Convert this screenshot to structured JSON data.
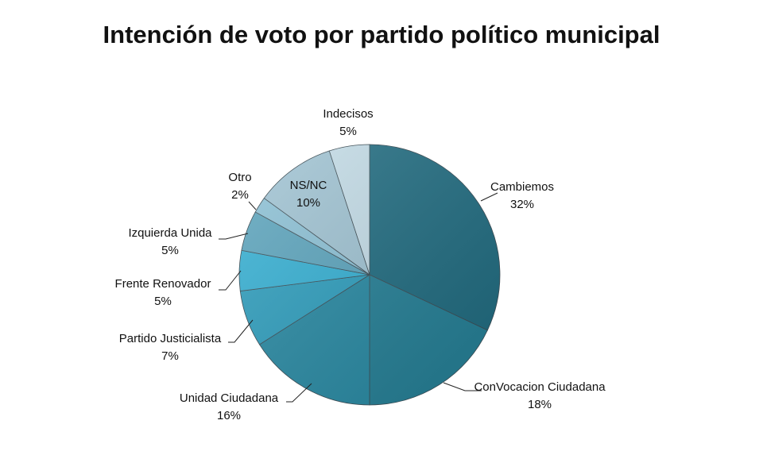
{
  "chart_data": {
    "type": "pie",
    "title": "Intención de voto por partido político municipal",
    "slices": [
      {
        "label": "Cambiemos",
        "value": 32,
        "pct_label": "32%",
        "color": "#1e6b80"
      },
      {
        "label": "ConVocacion Ciudadana",
        "value": 18,
        "pct_label": "18%",
        "color": "#237f96"
      },
      {
        "label": "Unidad Ciudadana",
        "value": 16,
        "pct_label": "16%",
        "color": "#2689a3"
      },
      {
        "label": "Partido Justicialista",
        "value": 7,
        "pct_label": "7%",
        "color": "#2c9ebe"
      },
      {
        "label": "Frente Renovador",
        "value": 5,
        "pct_label": "5%",
        "color": "#33b0d4"
      },
      {
        "label": "Izquierda Unida",
        "value": 5,
        "pct_label": "5%",
        "color": "#5aa4bd"
      },
      {
        "label": "Otro",
        "value": 2,
        "pct_label": "2%",
        "color": "#8bc1d6"
      },
      {
        "label": "NS/NC",
        "value": 10,
        "pct_label": "10%",
        "color": "#9fc3d3"
      },
      {
        "label": "Indecisos",
        "value": 5,
        "pct_label": "5%",
        "color": "#c4dde8"
      }
    ]
  }
}
